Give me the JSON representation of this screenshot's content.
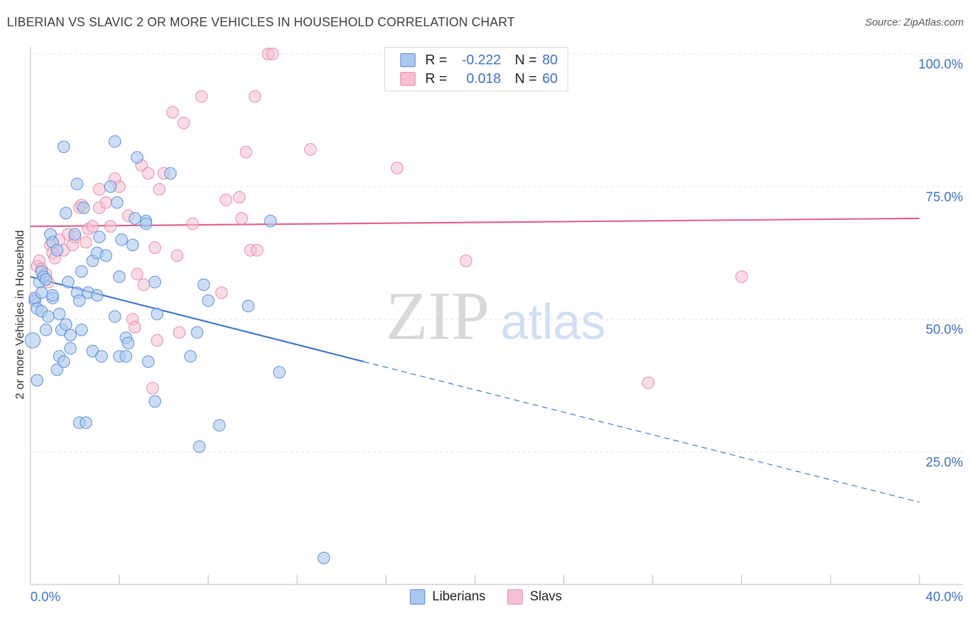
{
  "title": "LIBERIAN VS SLAVIC 2 OR MORE VEHICLES IN HOUSEHOLD CORRELATION CHART",
  "source": "Source: ZipAtlas.com",
  "watermark": {
    "zip": "ZIP",
    "atlas": "atlas"
  },
  "legend": {
    "rows": [
      {
        "r_label": "R =",
        "r_value": "-0.222",
        "n_label": "N =",
        "n_value": "80"
      },
      {
        "r_label": "R =",
        "r_value": "0.018",
        "n_label": "N =",
        "n_value": "60"
      }
    ]
  },
  "colors": {
    "liberians_fill": "#aac8f0",
    "liberians_stroke": "#5b8fd8",
    "liberians_line": "#3a74d2",
    "slavs_fill": "#f7c0d2",
    "slavs_stroke": "#e48aa8",
    "slavs_line": "#e0628e",
    "value_text": "#3b6fd4",
    "grid": "#e4e4e4"
  },
  "chart_data": {
    "type": "scatter",
    "title": "LIBERIAN VS SLAVIC 2 OR MORE VEHICLES IN HOUSEHOLD CORRELATION CHART",
    "xlabel": "",
    "ylabel": "2 or more Vehicles in Household",
    "xlim": [
      0,
      40
    ],
    "ylim": [
      0,
      105
    ],
    "x_tick_labels": [
      "0.0%",
      "40.0%"
    ],
    "y_ticks": [
      25,
      50,
      75,
      100
    ],
    "y_tick_labels": [
      "25.0%",
      "50.0%",
      "75.0%",
      "100.0%"
    ],
    "grid": "horizontal dashed",
    "legend_position": "top-center",
    "series": [
      {
        "name": "Liberians",
        "r": -0.222,
        "n": 80,
        "trend": {
          "x0": 0,
          "y0": 58.0,
          "x_solid_end": 15,
          "y_solid_end": 42.0,
          "x1": 40,
          "y1": 15.5
        },
        "points": [
          [
            0.1,
            46
          ],
          [
            0.2,
            53.5
          ],
          [
            0.2,
            54
          ],
          [
            0.3,
            38.5
          ],
          [
            0.3,
            52
          ],
          [
            0.4,
            57
          ],
          [
            0.5,
            51.5
          ],
          [
            0.5,
            59
          ],
          [
            0.5,
            55
          ],
          [
            0.6,
            58
          ],
          [
            0.7,
            57.5
          ],
          [
            0.7,
            48
          ],
          [
            0.8,
            50.5
          ],
          [
            0.9,
            66
          ],
          [
            1.0,
            54
          ],
          [
            1.0,
            54.5
          ],
          [
            1.0,
            64.5
          ],
          [
            1.2,
            40.5
          ],
          [
            1.2,
            63
          ],
          [
            1.3,
            43
          ],
          [
            1.3,
            51
          ],
          [
            1.4,
            48
          ],
          [
            1.5,
            42
          ],
          [
            1.6,
            70
          ],
          [
            1.5,
            82.5
          ],
          [
            1.6,
            49
          ],
          [
            1.7,
            57
          ],
          [
            1.8,
            44.5
          ],
          [
            1.8,
            47
          ],
          [
            2.0,
            66
          ],
          [
            2.1,
            75.5
          ],
          [
            2.1,
            55
          ],
          [
            2.2,
            53.5
          ],
          [
            2.3,
            48
          ],
          [
            2.3,
            59
          ],
          [
            2.4,
            71
          ],
          [
            2.2,
            30.5
          ],
          [
            2.5,
            30.5
          ],
          [
            2.6,
            55
          ],
          [
            2.8,
            61
          ],
          [
            2.8,
            44
          ],
          [
            3.0,
            54.5
          ],
          [
            3.0,
            62.5
          ],
          [
            3.1,
            65.5
          ],
          [
            3.2,
            43
          ],
          [
            3.4,
            62
          ],
          [
            3.6,
            75
          ],
          [
            3.8,
            50.5
          ],
          [
            3.8,
            83.5
          ],
          [
            3.9,
            72
          ],
          [
            4.0,
            58
          ],
          [
            4.0,
            43
          ],
          [
            4.1,
            65
          ],
          [
            4.3,
            46.5
          ],
          [
            4.3,
            43
          ],
          [
            4.4,
            45.5
          ],
          [
            4.6,
            64
          ],
          [
            4.7,
            69
          ],
          [
            4.8,
            80.5
          ],
          [
            5.2,
            68.5
          ],
          [
            5.2,
            68
          ],
          [
            5.3,
            42
          ],
          [
            5.6,
            57
          ],
          [
            5.6,
            34.5
          ],
          [
            5.7,
            51
          ],
          [
            6.3,
            77.5
          ],
          [
            7.5,
            47.5
          ],
          [
            7.2,
            43
          ],
          [
            7.6,
            26
          ],
          [
            7.8,
            56.5
          ],
          [
            8.0,
            53.5
          ],
          [
            8.5,
            30
          ],
          [
            9.8,
            52.5
          ],
          [
            10.8,
            68.5
          ],
          [
            11.2,
            40
          ],
          [
            13.2,
            5
          ]
        ]
      },
      {
        "name": "Slavs",
        "r": 0.018,
        "n": 60,
        "trend": {
          "x0": 0,
          "y0": 67.5,
          "x1": 40,
          "y1": 69.0
        },
        "points": [
          [
            0.2,
            54
          ],
          [
            0.3,
            60
          ],
          [
            0.4,
            61
          ],
          [
            0.5,
            59.5
          ],
          [
            0.7,
            58.5
          ],
          [
            0.8,
            57
          ],
          [
            0.9,
            64
          ],
          [
            1.0,
            62.5
          ],
          [
            1.1,
            61.5
          ],
          [
            1.3,
            65
          ],
          [
            1.5,
            63
          ],
          [
            1.7,
            66
          ],
          [
            1.9,
            64
          ],
          [
            2.0,
            65.5
          ],
          [
            2.2,
            71
          ],
          [
            2.3,
            71.5
          ],
          [
            2.5,
            64.5
          ],
          [
            2.6,
            67
          ],
          [
            2.8,
            67.5
          ],
          [
            3.1,
            74.5
          ],
          [
            3.1,
            71
          ],
          [
            3.4,
            72
          ],
          [
            3.6,
            67.5
          ],
          [
            3.8,
            76.5
          ],
          [
            4.0,
            75
          ],
          [
            4.4,
            69.5
          ],
          [
            4.6,
            50
          ],
          [
            4.7,
            48.5
          ],
          [
            4.8,
            58.5
          ],
          [
            5.0,
            79
          ],
          [
            5.1,
            56.5
          ],
          [
            5.3,
            77.5
          ],
          [
            5.6,
            63.5
          ],
          [
            5.7,
            46
          ],
          [
            5.8,
            74.5
          ],
          [
            5.5,
            37
          ],
          [
            6.0,
            77.5
          ],
          [
            6.4,
            89
          ],
          [
            6.6,
            62
          ],
          [
            6.7,
            47.5
          ],
          [
            6.9,
            87
          ],
          [
            7.3,
            68
          ],
          [
            7.7,
            92
          ],
          [
            8.8,
            72.5
          ],
          [
            8.6,
            55
          ],
          [
            9.4,
            73
          ],
          [
            9.5,
            69
          ],
          [
            9.7,
            81.5
          ],
          [
            9.9,
            63
          ],
          [
            10.2,
            63
          ],
          [
            10.1,
            92
          ],
          [
            10.7,
            100
          ],
          [
            10.9,
            100
          ],
          [
            12.6,
            82
          ],
          [
            16.5,
            78.5
          ],
          [
            19.6,
            61
          ],
          [
            27.8,
            38
          ],
          [
            32.0,
            58
          ]
        ]
      }
    ]
  }
}
